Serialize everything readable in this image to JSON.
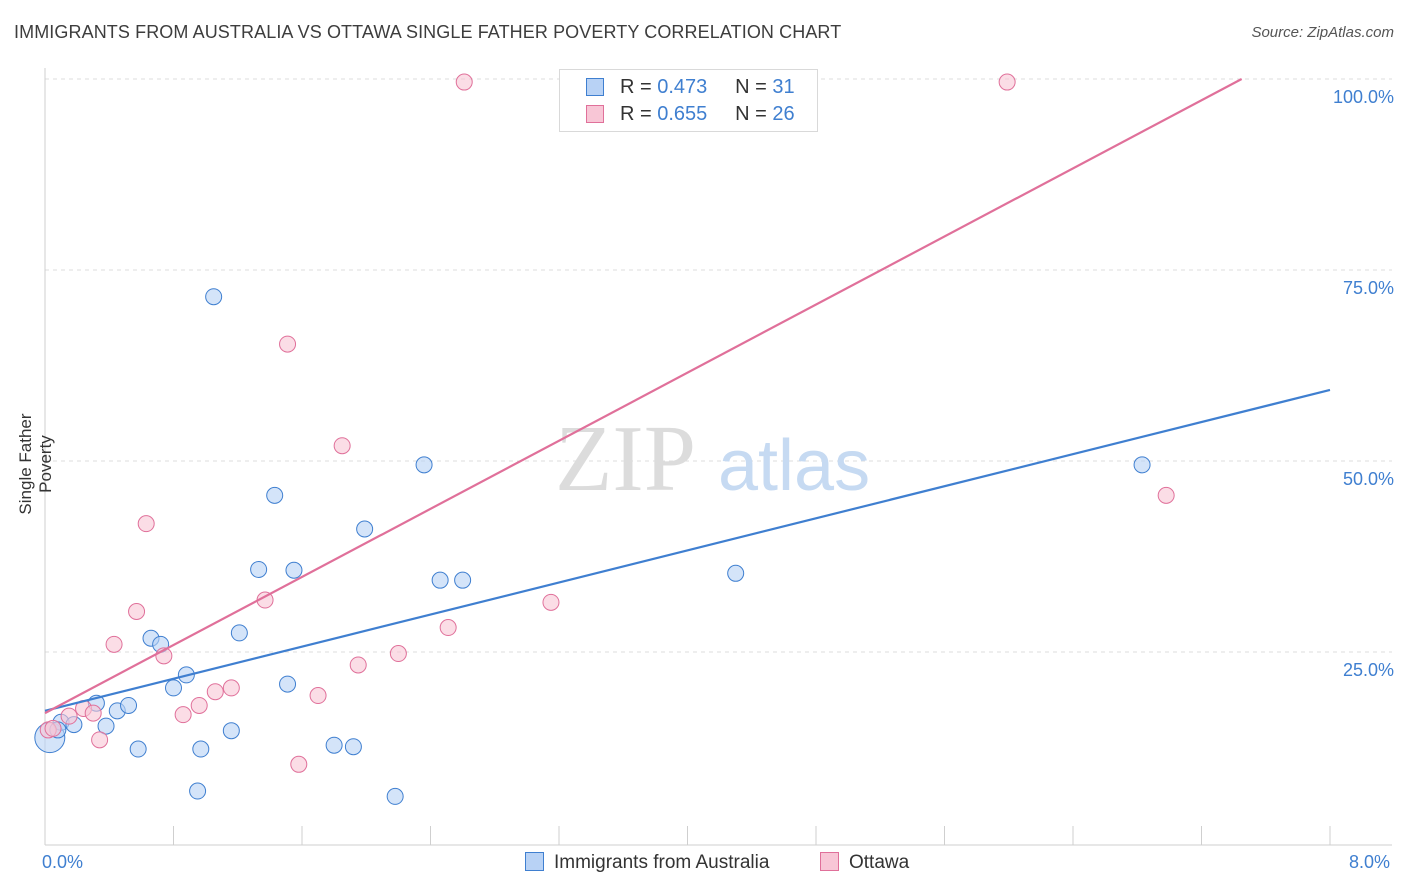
{
  "title": "IMMIGRANTS FROM AUSTRALIA VS OTTAWA SINGLE FATHER POVERTY CORRELATION CHART",
  "source": "Source: ZipAtlas.com",
  "watermark": {
    "zip": "ZIP",
    "atlas": "atlas"
  },
  "colors": {
    "blue": "#3f7fd0",
    "blue_fill": "#b8d2f5",
    "pink": "#e0709a",
    "pink_fill": "#f8c6d6",
    "tick_text": "#3f7fd0",
    "grid": "#dddddd"
  },
  "legend": {
    "rows": [
      {
        "r_label": "R = ",
        "r_value": "0.473",
        "n_label": "N = ",
        "n_value": "31"
      },
      {
        "r_label": "R = ",
        "r_value": "0.655",
        "n_label": "N = ",
        "n_value": "26"
      }
    ]
  },
  "chart_data": {
    "type": "scatter",
    "title": "IMMIGRANTS FROM AUSTRALIA VS OTTAWA SINGLE FATHER POVERTY CORRELATION CHART",
    "xlabel": "",
    "ylabel": "Single Father Poverty",
    "xlim": [
      0,
      8
    ],
    "ylim": [
      0,
      100
    ],
    "x_tick_labels": [
      "0.0%",
      "8.0%"
    ],
    "y_tick_labels": [
      "100.0%",
      "75.0%",
      "50.0%",
      "25.0%"
    ],
    "y_ticks": [
      100,
      75,
      50,
      25
    ],
    "grid": true,
    "legend_position": "top-center",
    "series": [
      {
        "name": "Immigrants from Australia",
        "color": "#3f7fd0",
        "fill": "#b8d2f5",
        "r": 0.473,
        "n": 31,
        "trend": {
          "x": [
            0,
            8
          ],
          "y": [
            17.3,
            59.3
          ]
        },
        "points": [
          [
            0.03,
            13.8
          ],
          [
            0.1,
            15.8
          ],
          [
            0.18,
            15.5
          ],
          [
            0.38,
            15.3
          ],
          [
            0.32,
            18.3
          ],
          [
            0.45,
            17.3
          ],
          [
            0.52,
            18.0
          ],
          [
            0.58,
            12.3
          ],
          [
            0.66,
            26.8
          ],
          [
            0.72,
            26.0
          ],
          [
            0.8,
            20.3
          ],
          [
            0.88,
            22.0
          ],
          [
            0.95,
            6.8
          ],
          [
            0.97,
            12.3
          ],
          [
            1.05,
            71.5
          ],
          [
            1.16,
            14.7
          ],
          [
            1.21,
            27.5
          ],
          [
            1.33,
            35.8
          ],
          [
            1.43,
            45.5
          ],
          [
            1.51,
            20.8
          ],
          [
            1.55,
            35.7
          ],
          [
            1.8,
            12.8
          ],
          [
            1.92,
            12.6
          ],
          [
            1.99,
            41.1
          ],
          [
            2.18,
            6.1
          ],
          [
            2.36,
            49.5
          ],
          [
            2.46,
            34.4
          ],
          [
            2.6,
            34.4
          ],
          [
            4.3,
            35.3
          ],
          [
            6.83,
            49.5
          ],
          [
            0.08,
            14.8
          ]
        ]
      },
      {
        "name": "Ottawa",
        "color": "#e0709a",
        "fill": "#f8c6d6",
        "r": 0.655,
        "n": 26,
        "trend": {
          "x": [
            0,
            7.45
          ],
          "y": [
            17.0,
            100
          ]
        },
        "points": [
          [
            0.02,
            14.8
          ],
          [
            0.15,
            16.6
          ],
          [
            0.24,
            17.6
          ],
          [
            0.34,
            13.5
          ],
          [
            0.43,
            26.0
          ],
          [
            0.57,
            30.3
          ],
          [
            0.63,
            41.8
          ],
          [
            0.74,
            24.5
          ],
          [
            0.86,
            16.8
          ],
          [
            0.96,
            18.0
          ],
          [
            1.06,
            19.8
          ],
          [
            1.16,
            20.3
          ],
          [
            1.37,
            31.8
          ],
          [
            1.51,
            65.3
          ],
          [
            1.58,
            10.3
          ],
          [
            1.7,
            19.3
          ],
          [
            1.85,
            52.0
          ],
          [
            1.95,
            23.3
          ],
          [
            2.2,
            24.8
          ],
          [
            2.51,
            28.2
          ],
          [
            2.61,
            99.6
          ],
          [
            3.15,
            31.5
          ],
          [
            5.99,
            99.6
          ],
          [
            6.98,
            45.5
          ],
          [
            0.05,
            15.0
          ],
          [
            0.3,
            17.0
          ]
        ]
      }
    ]
  }
}
